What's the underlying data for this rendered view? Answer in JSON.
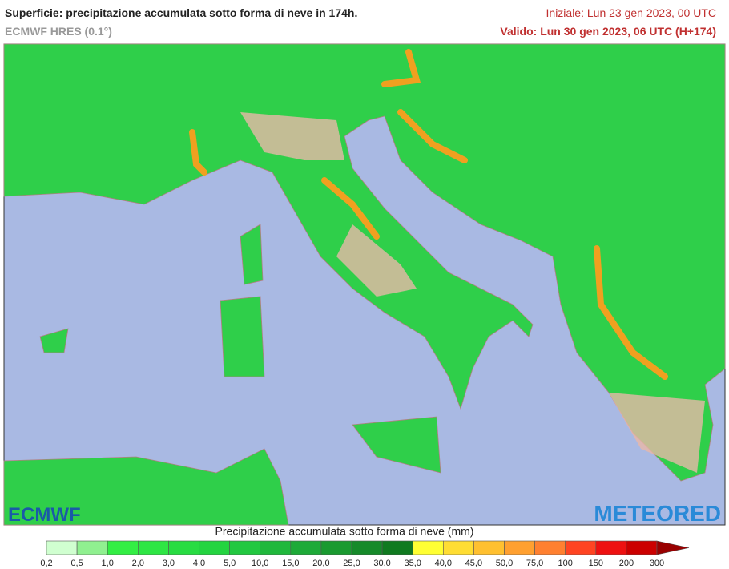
{
  "header": {
    "title": "Superficie: precipitazione accumulata sotto forma di neve in 174h.",
    "subtitle": "ECMWF HRES (0.1°)",
    "initial": "Iniziale: Lun 23 gen 2023, 00 UTC",
    "valid": "Valido: Lun 30 gen 2023, 06 UTC (H+174)"
  },
  "map": {
    "logo_left": "ECMWF",
    "logo_right": "METEORED"
  },
  "legend": {
    "title": "Precipitazione accumulata sotto forma di neve (mm)",
    "labels": [
      "0,2",
      "0,5",
      "1,0",
      "2,0",
      "3,0",
      "4,0",
      "5,0",
      "10,0",
      "15,0",
      "20,0",
      "25,0",
      "30,0",
      "35,0",
      "40,0",
      "45,0",
      "50,0",
      "75,0",
      "100",
      "150",
      "200",
      "300"
    ],
    "colors": [
      "#d0ffd0",
      "#90f090",
      "#33ee44",
      "#2ee644",
      "#28dc42",
      "#24d440",
      "#22c840",
      "#20b83c",
      "#1eaa38",
      "#1a9a30",
      "#168a2a",
      "#107a20",
      "#ffff33",
      "#ffdd33",
      "#ffc030",
      "#ffa030",
      "#ff8030",
      "#ff4422",
      "#ee1111",
      "#cc0000"
    ],
    "arrow_color": "#990000"
  }
}
